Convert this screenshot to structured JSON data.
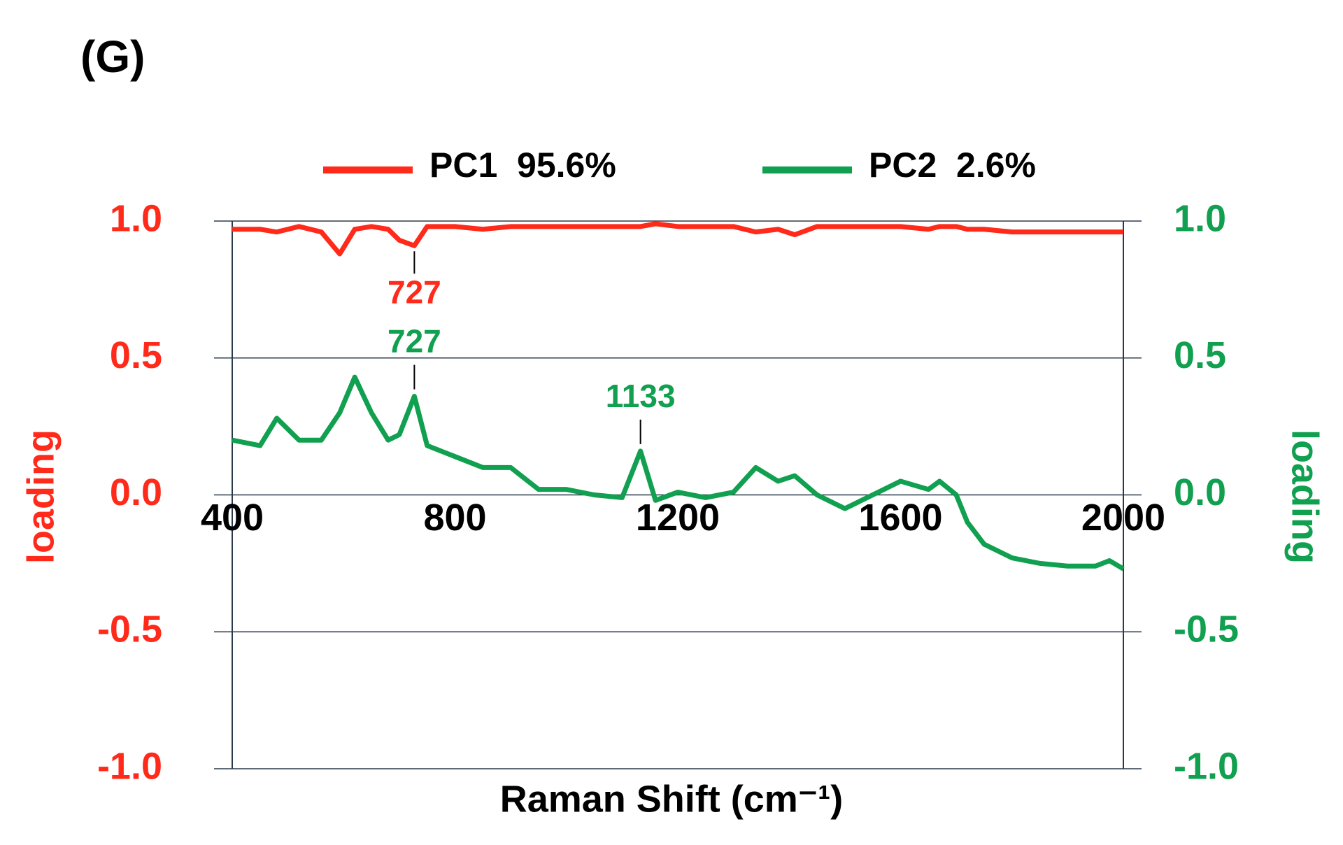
{
  "chart_data": {
    "type": "line",
    "title": "(G)",
    "x_label": "Raman Shift (cm⁻¹)",
    "y_label": "loading",
    "y2_label": "loading",
    "x": [
      400,
      450,
      480,
      520,
      560,
      593,
      620,
      650,
      680,
      700,
      727,
      750,
      800,
      850,
      900,
      950,
      1000,
      1050,
      1100,
      1133,
      1160,
      1200,
      1250,
      1300,
      1340,
      1380,
      1410,
      1450,
      1500,
      1550,
      1600,
      1650,
      1670,
      1700,
      1720,
      1750,
      1800,
      1850,
      1900,
      1950,
      1975,
      2000
    ],
    "series": [
      {
        "name": "PC1  95.6%",
        "color": "#ff2a1a",
        "values": [
          0.97,
          0.97,
          0.96,
          0.98,
          0.96,
          0.88,
          0.97,
          0.98,
          0.97,
          0.93,
          0.91,
          0.98,
          0.98,
          0.97,
          0.98,
          0.98,
          0.98,
          0.98,
          0.98,
          0.98,
          0.99,
          0.98,
          0.98,
          0.98,
          0.96,
          0.97,
          0.95,
          0.98,
          0.98,
          0.98,
          0.98,
          0.97,
          0.98,
          0.98,
          0.97,
          0.97,
          0.96,
          0.96,
          0.96,
          0.96,
          0.96,
          0.96
        ]
      },
      {
        "name": "PC2  2.6%",
        "color": "#10a050",
        "axis": "y2",
        "values": [
          0.2,
          0.18,
          0.28,
          0.2,
          0.2,
          0.3,
          0.43,
          0.3,
          0.2,
          0.22,
          0.36,
          0.18,
          0.14,
          0.1,
          0.1,
          0.02,
          0.02,
          0,
          -0.01,
          0.16,
          -0.02,
          0.01,
          -0.01,
          0.01,
          0.1,
          0.05,
          0.07,
          0,
          -0.05,
          0,
          0.05,
          0.02,
          0.05,
          0,
          -0.1,
          -0.18,
          -0.23,
          -0.25,
          -0.26,
          -0.26,
          -0.24,
          -0.27
        ]
      }
    ],
    "annotations": [
      {
        "text": "727",
        "x": 727,
        "color": "#ff2a1a"
      },
      {
        "text": "727",
        "x": 727,
        "color": "#10a050"
      },
      {
        "text": "1133",
        "x": 1133,
        "color": "#10a050"
      }
    ],
    "xlim": [
      400,
      2000
    ],
    "xticks": [
      400,
      800,
      1200,
      1600,
      2000
    ],
    "ylim": [
      -1,
      1
    ],
    "yticks": [
      {
        "value": 1,
        "label": "1.0"
      },
      0.5,
      {
        "value": 0,
        "label": "0.0"
      },
      -0.5,
      {
        "value": -1,
        "label": "-1.0"
      }
    ],
    "y2lim": [
      -1,
      1
    ],
    "y2ticks": [
      {
        "value": 1,
        "label": "1.0"
      },
      0.5,
      {
        "value": 0,
        "label": "0.0"
      },
      -0.5,
      {
        "value": -1,
        "label": "-1.0"
      }
    ],
    "grid": true,
    "legend": "top"
  }
}
